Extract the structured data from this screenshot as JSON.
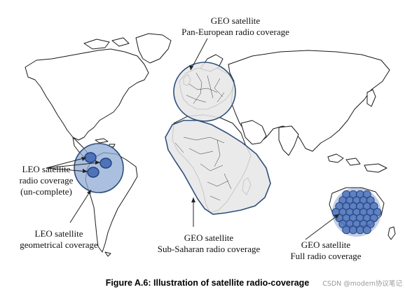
{
  "labels": {
    "geo_pan_line1": "GEO satellite",
    "geo_pan_line2": "Pan-European radio coverage",
    "leo_radio_line1": "LEO satellite",
    "leo_radio_line2": "radio coverage",
    "leo_radio_line3": "(un-complete)",
    "leo_geom_line1": "LEO satellite",
    "leo_geom_line2": "geometrical coverage",
    "geo_sub_line1": "GEO satellite",
    "geo_sub_line2": "Sub-Saharan radio coverage",
    "geo_full_line1": "GEO satellite",
    "geo_full_line2": "Full radio coverage"
  },
  "caption": "Figure A.6: Illustration of satellite radio-coverage",
  "watermark": "CSDN @modem协议笔记",
  "colors": {
    "coverage_fill": "#e6e6e6",
    "coverage_stroke": "#2f4f7a",
    "leo_fill": "#8fa9d4",
    "beam_fill": "#4f73b8",
    "beam_stroke": "#1f3f7f"
  }
}
